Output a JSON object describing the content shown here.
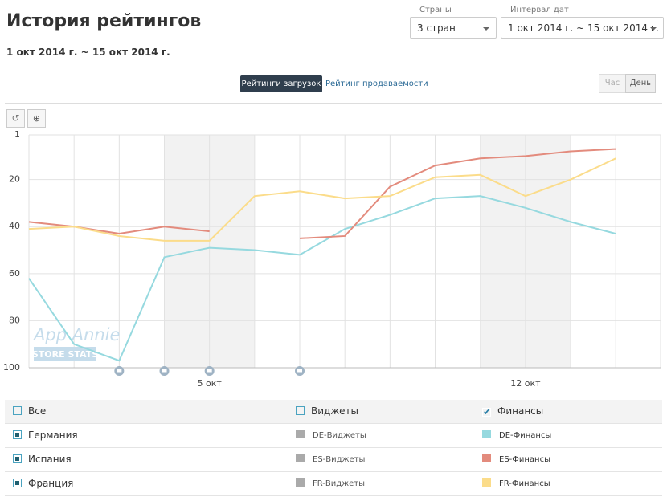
{
  "header": {
    "title": "История рейтингов",
    "date_range": "1 окт 2014 г. ~ 15 окт 2014 г."
  },
  "filters": {
    "countries": {
      "label": "Страны",
      "value": "3 стран"
    },
    "interval": {
      "label": "Интервал дат",
      "value": "1 окт 2014 г. ~ 15 окт 2014 г."
    }
  },
  "tabs": [
    "Рейтинги загрузок",
    "Рейтинг продаваемости"
  ],
  "granularity": [
    "Час",
    "День"
  ],
  "chart_data": {
    "type": "line",
    "y_reversed": true,
    "grid": true,
    "categories": [
      null,
      null,
      null,
      null,
      "5 окт",
      null,
      null,
      null,
      null,
      null,
      null,
      "12 окт",
      null,
      null
    ],
    "ylim": [
      1,
      100
    ],
    "yticks": [
      1,
      20,
      40,
      60,
      80,
      100
    ],
    "watermark": {
      "line1": "App Annie",
      "line2": "STORE STATS"
    },
    "series": [
      {
        "name": "DE-Финансы",
        "color": "#96d9df",
        "values": [
          62,
          90,
          97,
          53,
          49,
          50,
          52,
          41,
          35,
          28,
          27,
          32,
          38,
          43
        ]
      },
      {
        "name": "ES-Финансы",
        "color": "#e38b7d",
        "values": [
          38,
          40,
          43,
          40,
          42,
          null,
          45,
          44,
          23,
          14,
          11,
          10,
          8,
          7
        ]
      },
      {
        "name": "FR-Финансы",
        "color": "#fbdc8a",
        "values": [
          41,
          40,
          44,
          46,
          46,
          27,
          25,
          28,
          27,
          19,
          18,
          27,
          20,
          11
        ]
      }
    ]
  },
  "legend_table": {
    "header": [
      "Все",
      "Виджеты",
      "Финансы"
    ],
    "rows": [
      {
        "country": "Германия",
        "widgets": "DE-Виджеты"
      },
      {
        "country": "Испания",
        "widgets": "ES-Виджеты"
      },
      {
        "country": "Франция",
        "widgets": "FR-Виджеты"
      }
    ]
  }
}
